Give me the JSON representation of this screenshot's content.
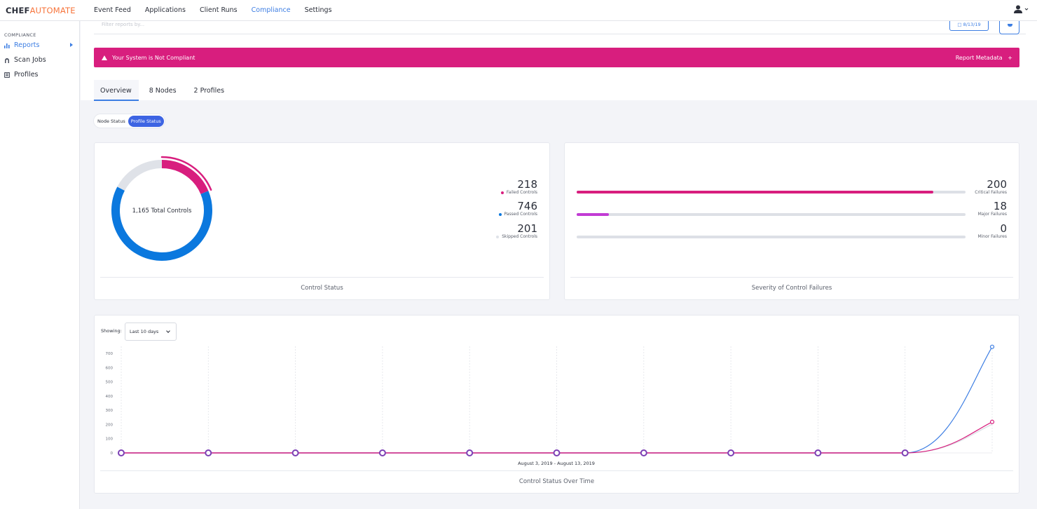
{
  "brand": {
    "part1": "CHEF",
    "part2": "AUTOMATE"
  },
  "nav": [
    "Event Feed",
    "Applications",
    "Client Runs",
    "Compliance",
    "Settings"
  ],
  "nav_active": "Compliance",
  "sidebar": {
    "section": "COMPLIANCE",
    "items": [
      {
        "label": "Reports",
        "icon": "bar-chart-icon",
        "active": true
      },
      {
        "label": "Scan Jobs",
        "icon": "radar-icon",
        "active": false
      },
      {
        "label": "Profiles",
        "icon": "book-icon",
        "active": false
      }
    ]
  },
  "filter": {
    "placeholder": "Filter reports by...",
    "date": "8/13/19"
  },
  "banner": {
    "message": "Your System is Not Compliant",
    "metadata": "Report Metadata",
    "plus": "+",
    "color": "#d81e7e"
  },
  "tabs": [
    "Overview",
    "8 Nodes",
    "2 Profiles"
  ],
  "toggle": {
    "node": "Node Status",
    "profile": "Profile Status"
  },
  "control_status": {
    "center_label": "1,165 Total Controls",
    "stats": [
      {
        "value": "218",
        "label": "Failed Controls",
        "color": "#d81e7e"
      },
      {
        "value": "746",
        "label": "Passed Controls",
        "color": "#0b78de"
      },
      {
        "value": "201",
        "label": "Skipped Controls",
        "color": "#dfe2e8"
      }
    ],
    "footer": "Control Status"
  },
  "severity": {
    "stats": [
      {
        "value": "200",
        "label": "Critical Failures",
        "fraction": 0.917,
        "color": "#d81e7e"
      },
      {
        "value": "18",
        "label": "Major Failures",
        "fraction": 0.083,
        "color": "#c23bd4"
      },
      {
        "value": "0",
        "label": "Minor Failures",
        "fraction": 0,
        "color": "#dde0e6"
      }
    ],
    "footer": "Severity of Control Failures"
  },
  "timeline": {
    "showing_label": "Showing:",
    "range": "Last 10 days",
    "date_range": "August 3, 2019 - August 13, 2019",
    "footer": "Control Status Over Time"
  },
  "chart_data": {
    "type": "line",
    "x": [
      1,
      2,
      3,
      4,
      5,
      6,
      7,
      8,
      9,
      10,
      11
    ],
    "ylim": [
      0,
      700
    ],
    "yticks": [
      0,
      100,
      200,
      300,
      400,
      500,
      600,
      700
    ],
    "xlabel": "August 3, 2019 - August 13, 2019",
    "series": [
      {
        "values": [
          0,
          0,
          0,
          0,
          0,
          0,
          0,
          0,
          0,
          0,
          746
        ],
        "color": "#3d7ee3"
      },
      {
        "values": [
          0,
          0,
          0,
          0,
          0,
          0,
          0,
          0,
          0,
          0,
          218
        ],
        "color": "#d81e7e"
      },
      {
        "values": [
          0,
          0,
          0,
          0,
          0,
          0,
          0,
          0,
          0,
          0,
          201
        ],
        "color": "#dfe2e8"
      }
    ]
  }
}
